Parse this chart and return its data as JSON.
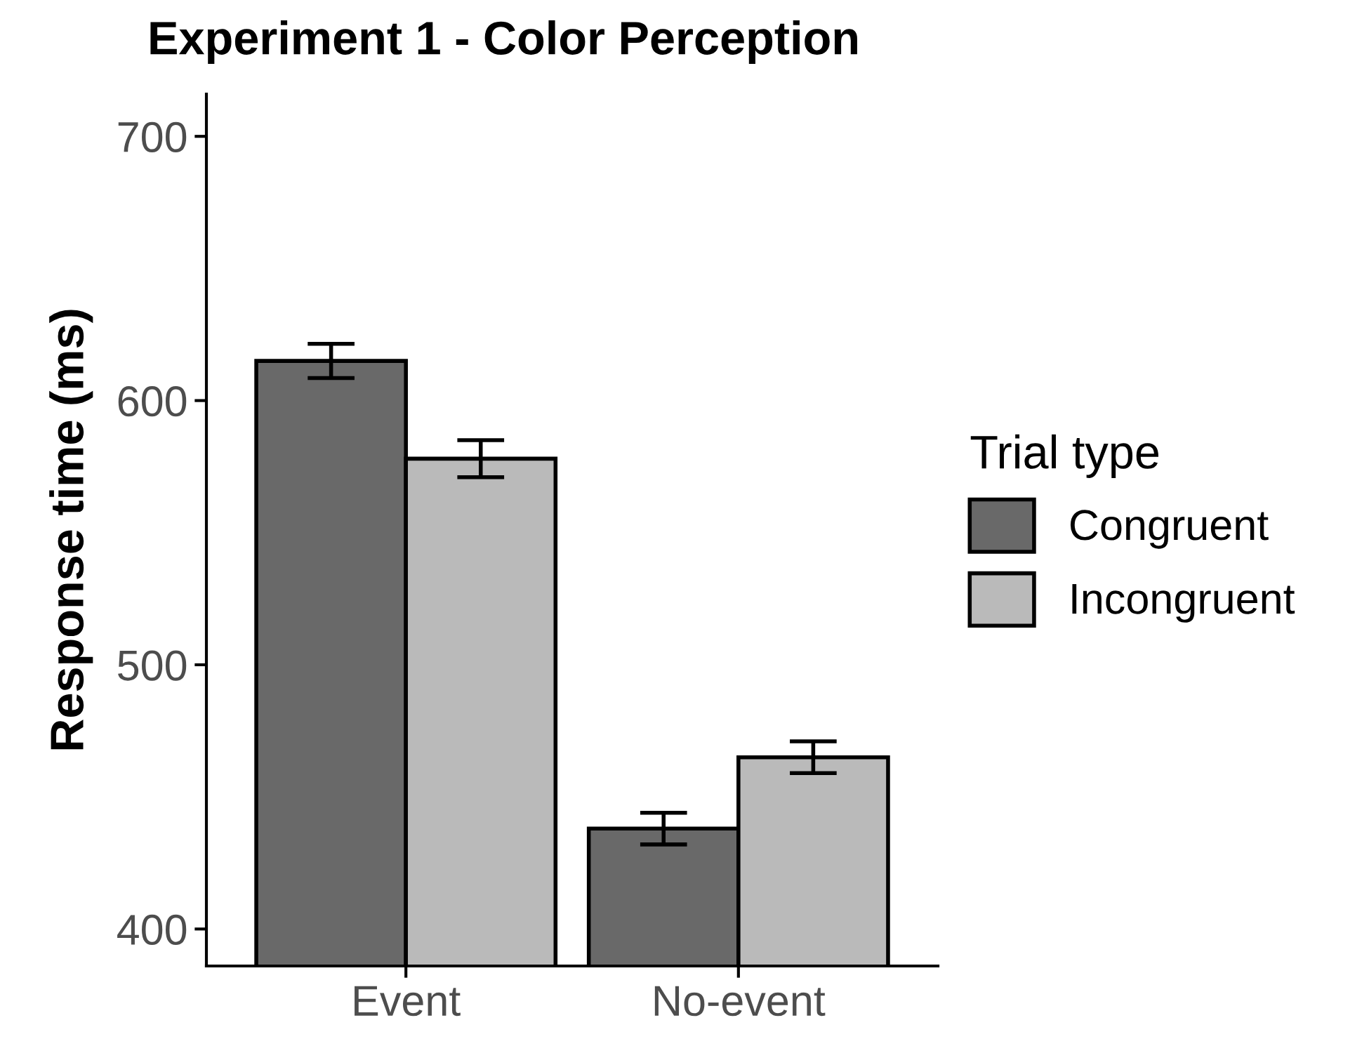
{
  "chart_data": {
    "type": "bar",
    "title": "Experiment 1 - Color Perception",
    "ylabel": "Response time (ms)",
    "legend_title": "Trial type",
    "categories": [
      "Event",
      "No-event"
    ],
    "series": [
      {
        "name": "Congruent",
        "color": "#696969",
        "values": [
          615,
          438
        ],
        "errors": [
          6.5,
          6
        ]
      },
      {
        "name": "Incongruent",
        "color": "#bababa",
        "values": [
          578,
          465
        ],
        "errors": [
          7,
          6
        ]
      }
    ],
    "ylim": [
      386,
      716
    ],
    "yticks": [
      400,
      500,
      600,
      700
    ],
    "grid": false,
    "legend": "right"
  }
}
